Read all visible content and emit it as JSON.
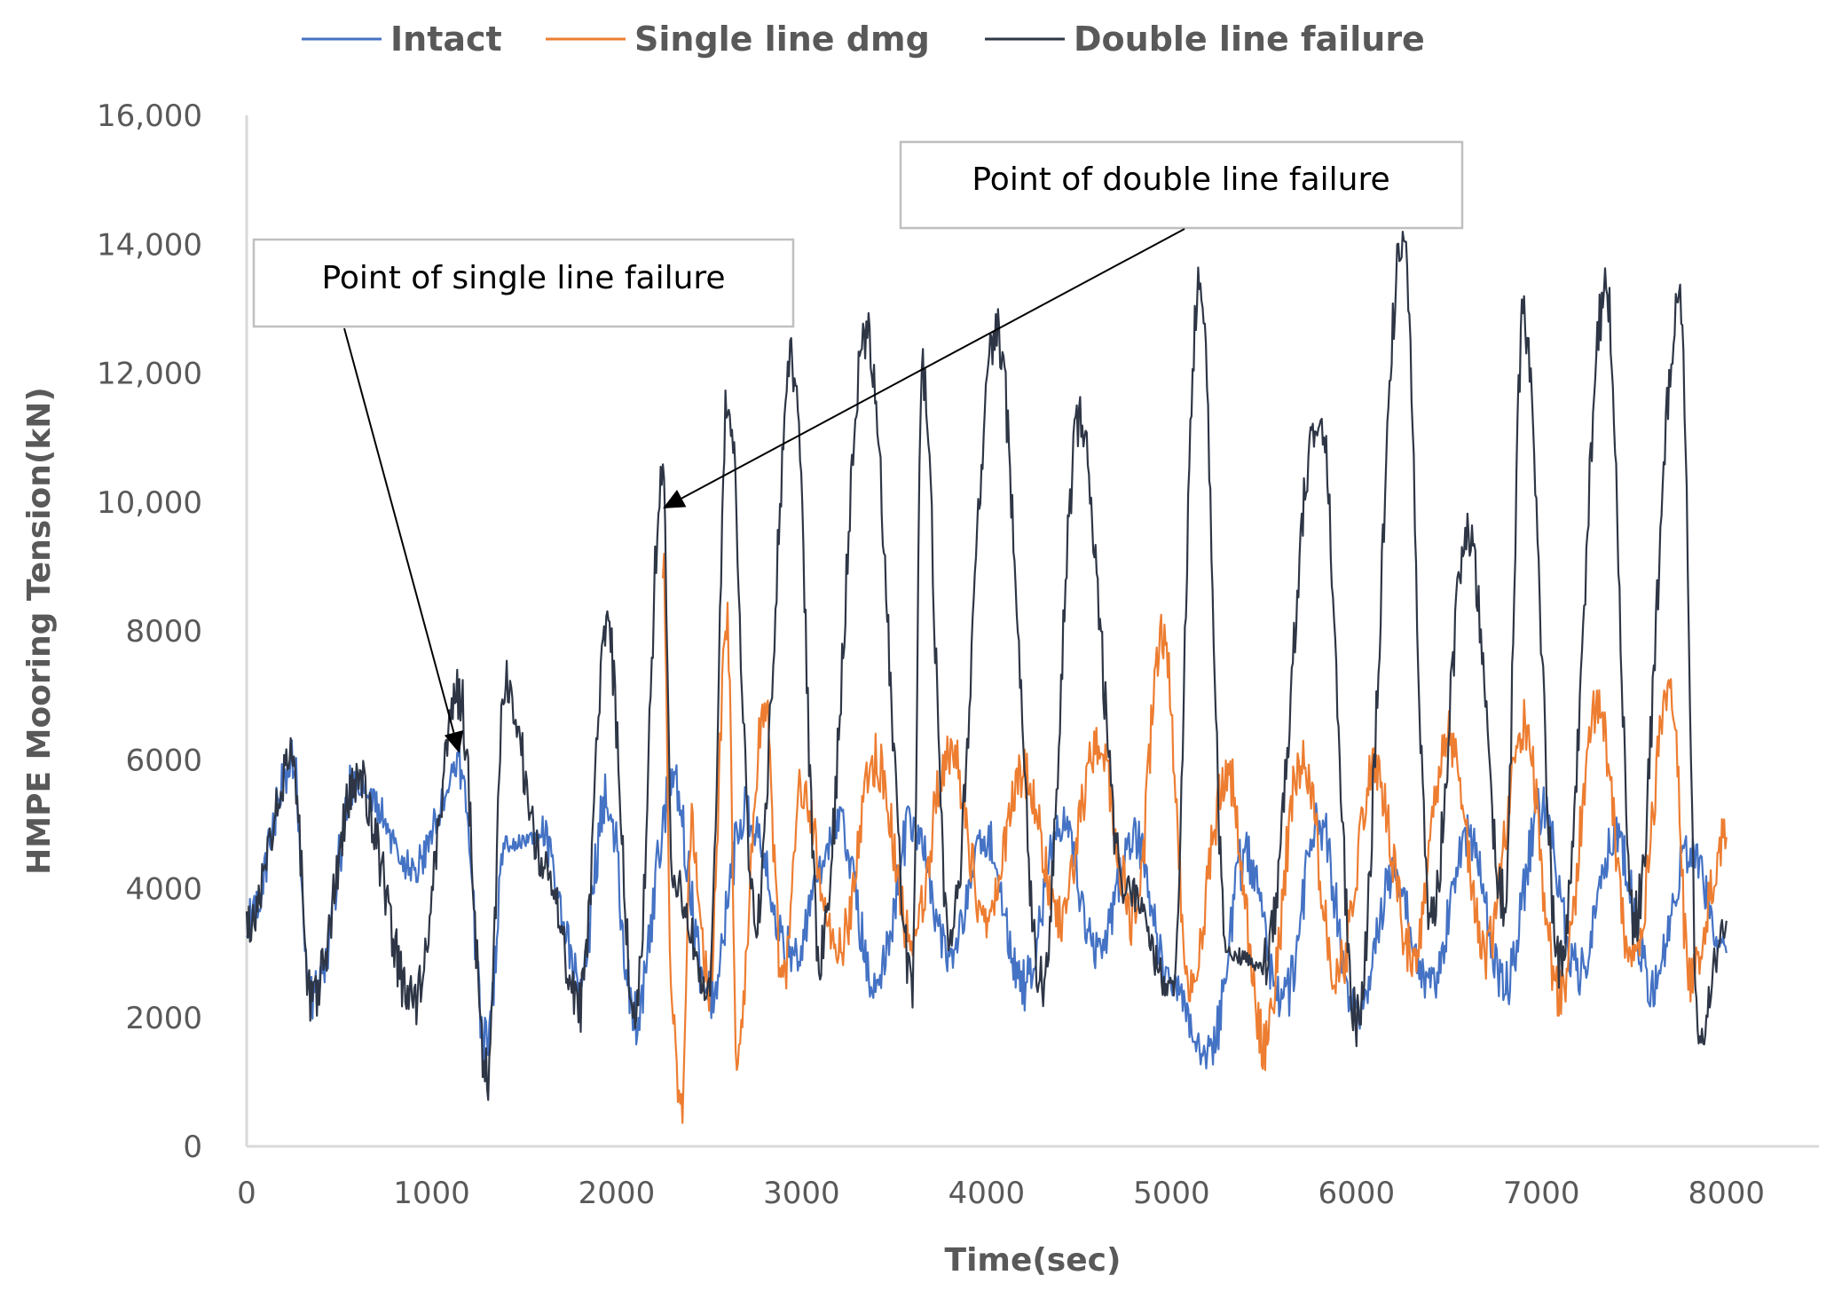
{
  "chart_data": {
    "type": "line",
    "title": "",
    "xlabel": "Time(sec)",
    "ylabel": "HMPE Mooring Tension(kN)",
    "xlim": [
      0,
      8500
    ],
    "ylim": [
      0,
      16000
    ],
    "x_ticks": [
      0,
      1000,
      2000,
      3000,
      4000,
      5000,
      6000,
      7000,
      8000
    ],
    "x_tick_labels": [
      "0",
      "1000",
      "2000",
      "3000",
      "4000",
      "5000",
      "6000",
      "7000",
      "8000"
    ],
    "y_ticks": [
      0,
      2000,
      4000,
      6000,
      8000,
      10000,
      12000,
      14000,
      16000
    ],
    "y_tick_labels": [
      "0",
      "2000",
      "4000",
      "6000",
      "8000",
      "10,000",
      "12,000",
      "14,000",
      "16,000"
    ],
    "grid": false,
    "legend_position": "top",
    "series": [
      {
        "name": "Intact",
        "color": "#4472C4",
        "x": [
          0,
          250,
          350,
          600,
          900,
          1150,
          1300,
          1400,
          1600,
          1800,
          1950,
          2100,
          2300,
          2500,
          2700,
          2950,
          3200,
          3400,
          3600,
          3800,
          4000,
          4200,
          4400,
          4600,
          4800,
          5000,
          5200,
          5400,
          5600,
          5800,
          6000,
          6200,
          6400,
          6600,
          6800,
          7000,
          7200,
          7400,
          7600,
          7800,
          8000
        ],
        "y": [
          3400,
          6000,
          2200,
          5700,
          4300,
          5900,
          1500,
          4700,
          4800,
          2600,
          5400,
          2000,
          5600,
          2300,
          5200,
          3000,
          5000,
          2500,
          5000,
          3000,
          4800,
          2500,
          5000,
          3000,
          4800,
          2500,
          1300,
          4500,
          2200,
          5000,
          2000,
          4200,
          2500,
          4800,
          2500,
          5200,
          2700,
          4800,
          2500,
          4600,
          3000
        ]
      },
      {
        "name": "Single line dmg",
        "color": "#ED7D31",
        "x": [
          2250,
          2300,
          2350,
          2400,
          2500,
          2600,
          2650,
          2800,
          2900,
          3000,
          3200,
          3400,
          3600,
          3800,
          4000,
          4200,
          4400,
          4600,
          4800,
          4950,
          5100,
          5300,
          5500,
          5700,
          5900,
          6100,
          6300,
          6500,
          6700,
          6900,
          7100,
          7300,
          7500,
          7700,
          7800,
          8000
        ],
        "y": [
          9200,
          2000,
          500,
          5000,
          2500,
          8000,
          1400,
          6800,
          2500,
          5500,
          3000,
          6000,
          3200,
          6200,
          3500,
          5800,
          3500,
          6300,
          3500,
          8000,
          2500,
          5800,
          1600,
          6000,
          2700,
          5800,
          3000,
          6400,
          3000,
          6500,
          2300,
          6800,
          2800,
          7200,
          2600,
          4800
        ]
      },
      {
        "name": "Double line failure",
        "color": "#2E3646",
        "x": [
          0,
          250,
          350,
          600,
          900,
          1150,
          1300,
          1400,
          1600,
          1800,
          1950,
          2100,
          2250,
          2300,
          2500,
          2600,
          2750,
          2950,
          3100,
          3350,
          3600,
          3650,
          3800,
          4050,
          4300,
          4500,
          4750,
          5000,
          5150,
          5300,
          5500,
          5800,
          6000,
          6250,
          6400,
          6600,
          6800,
          6900,
          7100,
          7350,
          7500,
          7750,
          7850,
          8000
        ],
        "y": [
          3400,
          6000,
          2200,
          5700,
          2200,
          7000,
          1100,
          7200,
          4500,
          2200,
          8000,
          2000,
          10400,
          4200,
          2500,
          11600,
          3500,
          12200,
          3000,
          12600,
          2600,
          12100,
          3200,
          12700,
          2500,
          11200,
          4000,
          2500,
          13500,
          3000,
          2800,
          11500,
          2000,
          14000,
          3500,
          9500,
          3800,
          12800,
          2800,
          13300,
          3500,
          13200,
          1700,
          3500
        ]
      }
    ],
    "annotations": [
      {
        "text": "Point of single line failure",
        "x": 1150,
        "y": 6100
      },
      {
        "text": "Point of double line failure",
        "x": 2250,
        "y": 9900
      }
    ]
  }
}
